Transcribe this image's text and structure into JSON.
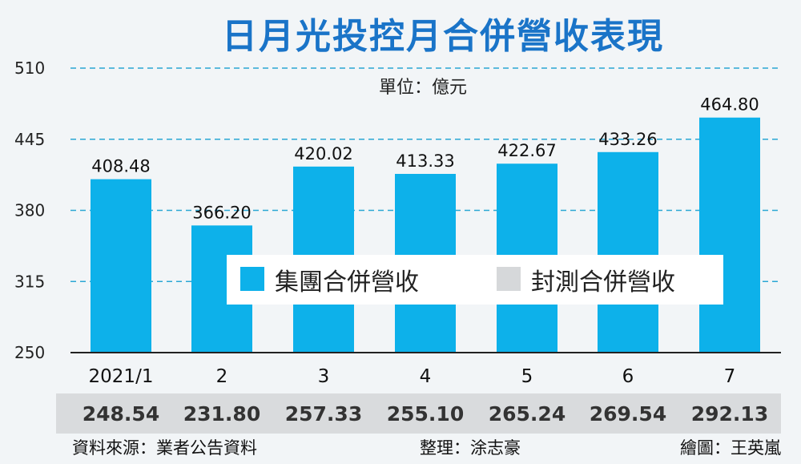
{
  "chart_data": {
    "type": "bar",
    "title": "日月光投控月合併營收表現",
    "unit_label": "單位：億元",
    "categories": [
      "2021/1",
      "2",
      "3",
      "4",
      "5",
      "6",
      "7"
    ],
    "series": [
      {
        "name": "集團合併營收",
        "values": [
          408.48,
          366.2,
          420.02,
          413.33,
          422.67,
          433.26,
          464.8
        ],
        "labels": [
          "408.48",
          "366.20",
          "420.02",
          "413.33",
          "422.67",
          "433.26",
          "464.80"
        ]
      },
      {
        "name": "封測合併營收",
        "values": [
          248.54,
          231.8,
          257.33,
          255.1,
          265.24,
          269.54,
          292.13
        ],
        "labels": [
          "248.54",
          "231.80",
          "257.33",
          "255.10",
          "265.24",
          "269.54",
          "292.13"
        ]
      }
    ],
    "yticks": [
      "510",
      "445",
      "380",
      "315",
      "250"
    ],
    "ylim": [
      250,
      510
    ],
    "grid": true,
    "legend_position": "center"
  },
  "footer": {
    "source": "資料來源：業者公告資料",
    "editor": "整理：涂志豪",
    "illustrator": "繪圖：王英嵐"
  },
  "colors": {
    "primary_bar": "#0db1ea",
    "secondary_swatch": "#d6d8da",
    "grid": "#2aa7d4",
    "title": "#1a74c8",
    "background": "#f2f5f7",
    "table_band": "#d9dbdd"
  }
}
